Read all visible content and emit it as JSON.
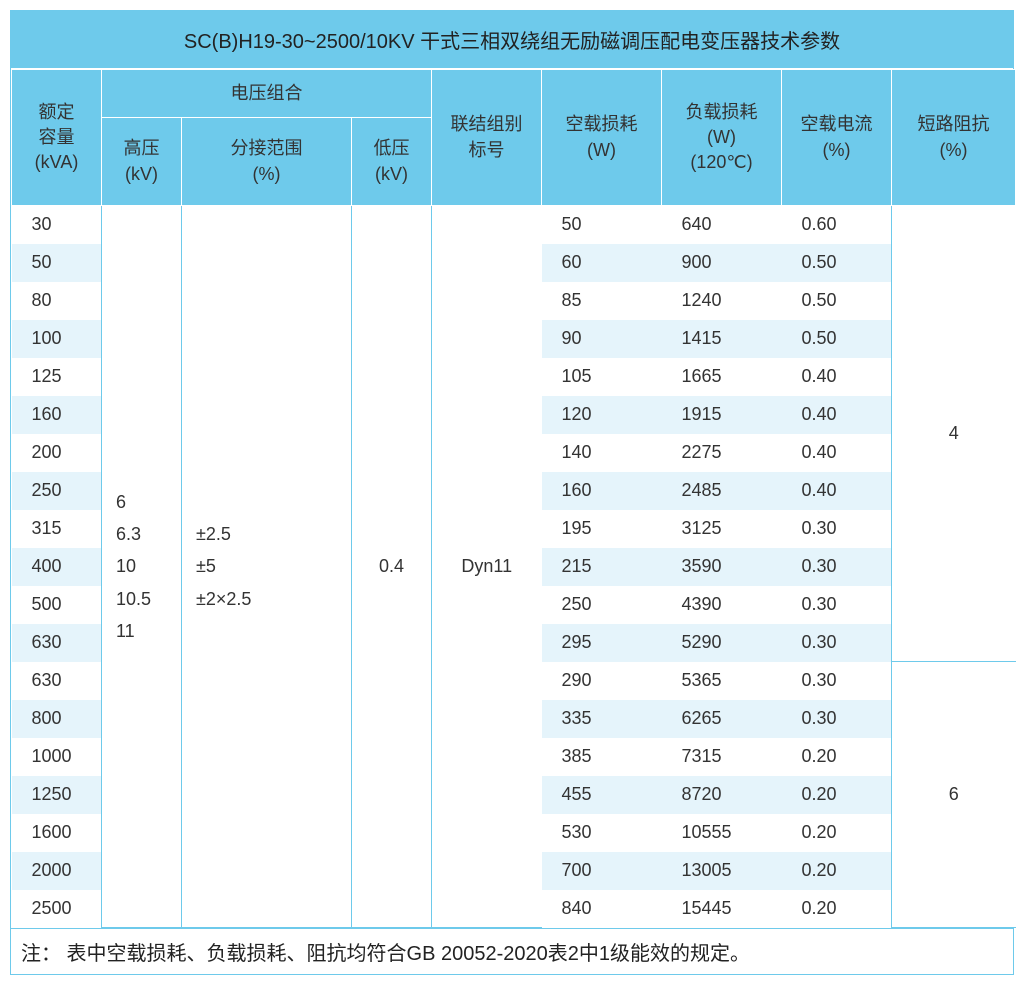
{
  "title": "SC(B)H19-30~2500/10KV 干式三相双绕组无励磁调压配电变压器技术参数",
  "headers": {
    "capacity": "额定\n容量\n(kVA)",
    "voltage_group": "电压组合",
    "hv": "高压\n(kV)",
    "tap": "分接范围\n(%)",
    "lv": "低压\n(kV)",
    "connection": "联结组别\n标号",
    "noload_loss": "空载损耗\n(W)",
    "load_loss": "负载损耗\n(W)\n(120℃)",
    "noload_current": "空载电流\n(%)",
    "impedance": "短路阻抗\n(%)"
  },
  "merged": {
    "hv": "6\n6.3\n10\n10.5\n11",
    "tap": "±2.5\n±5\n±2×2.5",
    "lv": "0.4",
    "connection": "Dyn11"
  },
  "impedance_groups": [
    {
      "value": "4",
      "rowspan": 12
    },
    {
      "value": "6",
      "rowspan": 7
    }
  ],
  "rows": [
    {
      "cap": "30",
      "nl": "50",
      "ll": "640",
      "nc": "0.60"
    },
    {
      "cap": "50",
      "nl": "60",
      "ll": "900",
      "nc": "0.50"
    },
    {
      "cap": "80",
      "nl": "85",
      "ll": "1240",
      "nc": "0.50"
    },
    {
      "cap": "100",
      "nl": "90",
      "ll": "1415",
      "nc": "0.50"
    },
    {
      "cap": "125",
      "nl": "105",
      "ll": "1665",
      "nc": "0.40"
    },
    {
      "cap": "160",
      "nl": "120",
      "ll": "1915",
      "nc": "0.40"
    },
    {
      "cap": "200",
      "nl": "140",
      "ll": "2275",
      "nc": "0.40"
    },
    {
      "cap": "250",
      "nl": "160",
      "ll": "2485",
      "nc": "0.40"
    },
    {
      "cap": "315",
      "nl": "195",
      "ll": "3125",
      "nc": "0.30"
    },
    {
      "cap": "400",
      "nl": "215",
      "ll": "3590",
      "nc": "0.30"
    },
    {
      "cap": "500",
      "nl": "250",
      "ll": "4390",
      "nc": "0.30"
    },
    {
      "cap": "630",
      "nl": "295",
      "ll": "5290",
      "nc": "0.30"
    },
    {
      "cap": "630",
      "nl": "290",
      "ll": "5365",
      "nc": "0.30"
    },
    {
      "cap": "800",
      "nl": "335",
      "ll": "6265",
      "nc": "0.30"
    },
    {
      "cap": "1000",
      "nl": "385",
      "ll": "7315",
      "nc": "0.20"
    },
    {
      "cap": "1250",
      "nl": "455",
      "ll": "8720",
      "nc": "0.20"
    },
    {
      "cap": "1600",
      "nl": "530",
      "ll": "10555",
      "nc": "0.20"
    },
    {
      "cap": "2000",
      "nl": "700",
      "ll": "13005",
      "nc": "0.20"
    },
    {
      "cap": "2500",
      "nl": "840",
      "ll": "15445",
      "nc": "0.20"
    }
  ],
  "footnote": "注：  表中空载损耗、负载损耗、阻抗均符合GB 20052-2020表2中1级能效的规定。",
  "colors": {
    "header_bg": "#6ecaeb",
    "stripe": "#e5f4fb",
    "border": "#6ecaeb",
    "text": "#333333"
  }
}
